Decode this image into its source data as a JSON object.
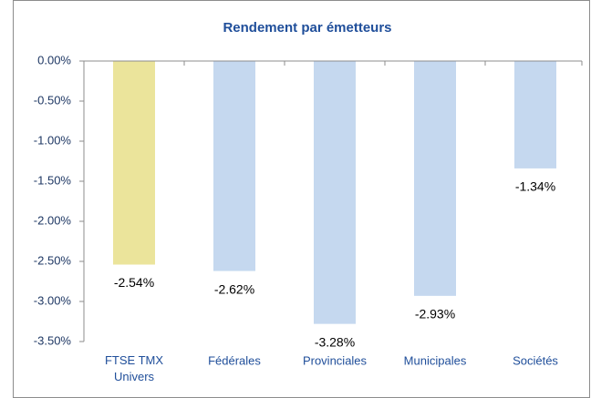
{
  "chart_data": {
    "type": "bar",
    "title": "Rendement par émetteurs",
    "categories": [
      "FTSE TMX Univers",
      "Fédérales",
      "Provinciales",
      "Municipales",
      "Sociétés"
    ],
    "values": [
      -2.54,
      -2.62,
      -3.28,
      -2.93,
      -1.34
    ],
    "value_labels": [
      "-2.54%",
      "-2.62%",
      "-3.28%",
      "-2.93%",
      "-1.34%"
    ],
    "colors": [
      "#ebe49b",
      "#c5d8ef",
      "#c5d8ef",
      "#c5d8ef",
      "#c5d8ef"
    ],
    "ylim": [
      -3.5,
      0
    ],
    "yticks": [
      {
        "value": 0,
        "label": "0.00%"
      },
      {
        "value": -0.5,
        "label": "-0.50%"
      },
      {
        "value": -1,
        "label": "-1.00%"
      },
      {
        "value": -1.5,
        "label": "-1.50%"
      },
      {
        "value": -2,
        "label": "-2.00%"
      },
      {
        "value": -2.5,
        "label": "-2.50%"
      },
      {
        "value": -3,
        "label": "-3.00%"
      },
      {
        "value": -3.5,
        "label": "-3.50%"
      }
    ],
    "grid": false
  }
}
